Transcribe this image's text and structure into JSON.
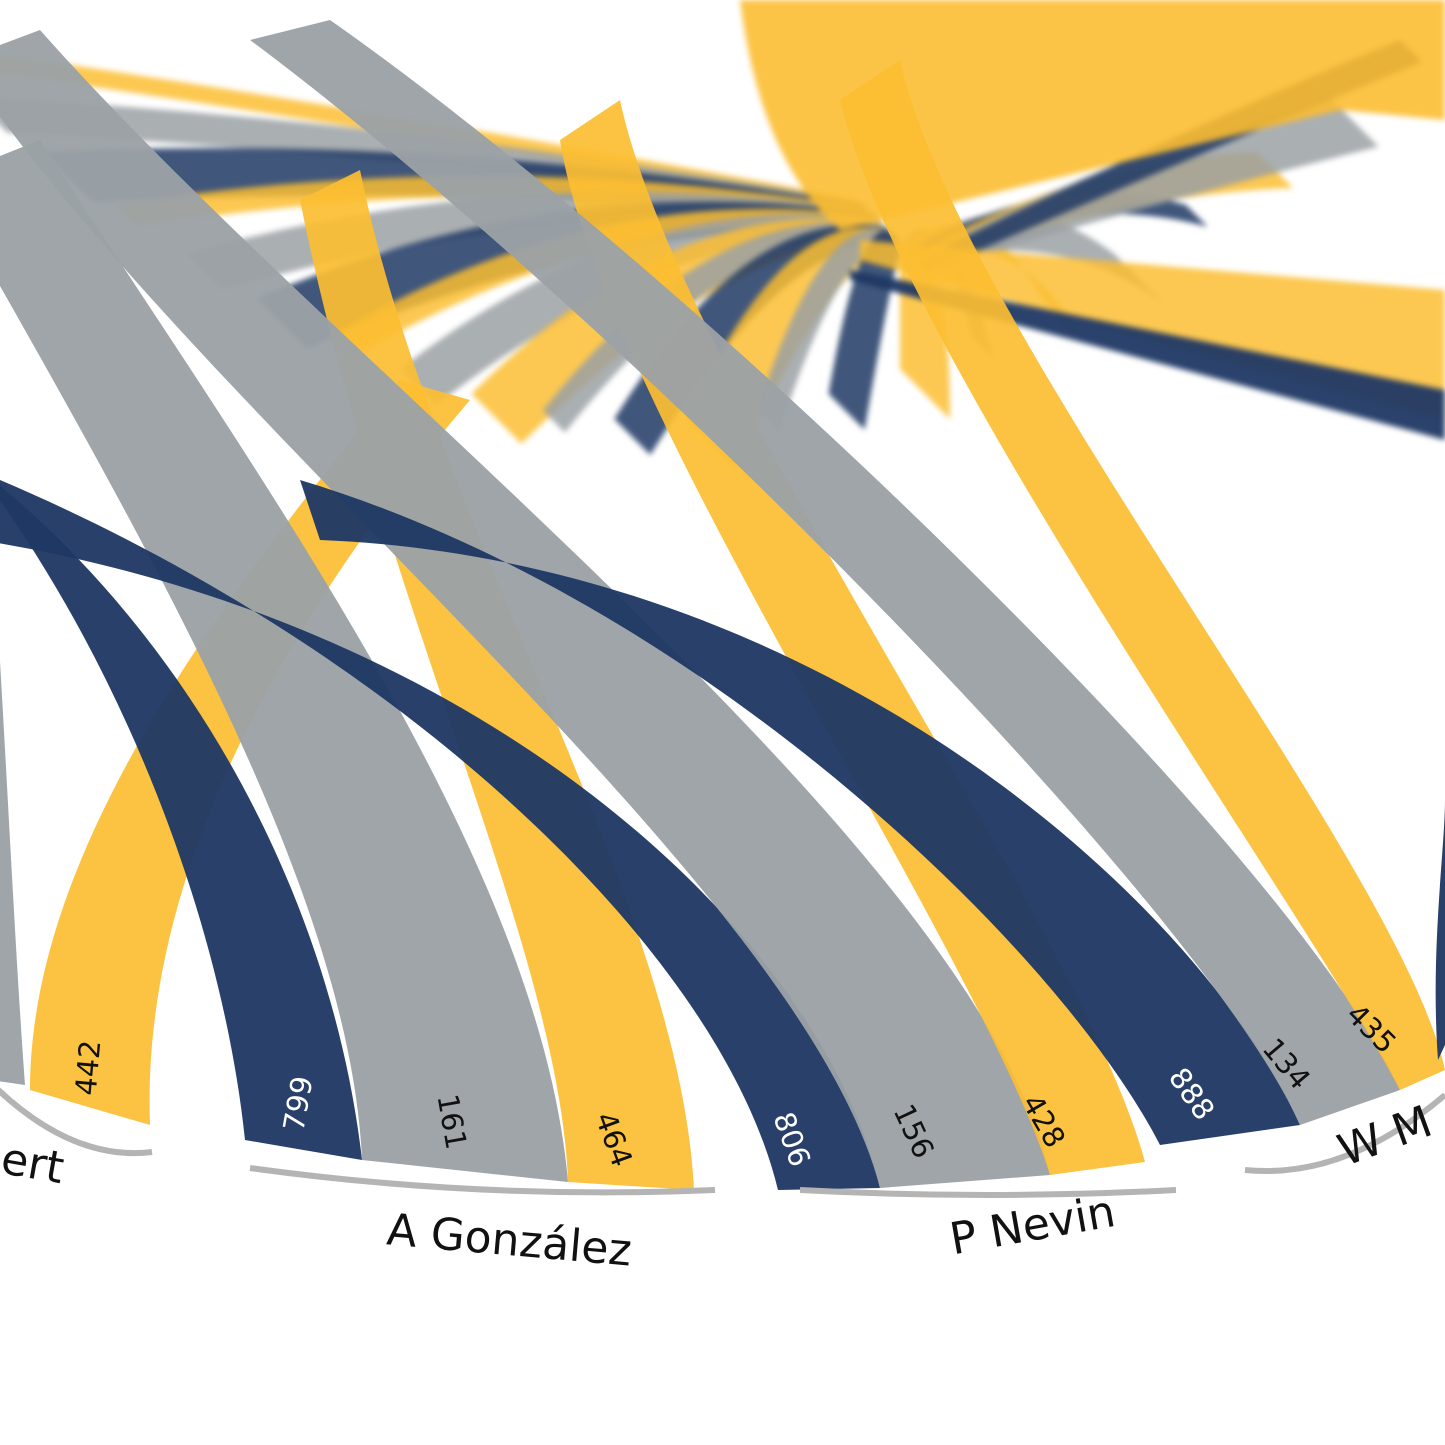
{
  "chart_data": {
    "type": "chord",
    "title": "",
    "colors": {
      "navy": "#1f3864",
      "grey": "#9ba1a5",
      "yellow": "#fcbe32"
    },
    "groups": [
      {
        "name": "ert",
        "ribbons": [
          {
            "series": "grey",
            "value": null
          },
          {
            "series": "yellow",
            "value": 442
          }
        ]
      },
      {
        "name": "A González",
        "ribbons": [
          {
            "series": "navy",
            "value": 799
          },
          {
            "series": "grey",
            "value": 161
          },
          {
            "series": "yellow",
            "value": 464
          }
        ]
      },
      {
        "name": "P Nevin",
        "ribbons": [
          {
            "series": "navy",
            "value": 806
          },
          {
            "series": "grey",
            "value": 156
          },
          {
            "series": "yellow",
            "value": 428
          }
        ]
      },
      {
        "name": "W M",
        "ribbons": [
          {
            "series": "navy",
            "value": 888
          },
          {
            "series": "grey",
            "value": 134
          },
          {
            "series": "yellow",
            "value": 435
          },
          {
            "series": "navy",
            "value": null
          }
        ]
      }
    ]
  }
}
